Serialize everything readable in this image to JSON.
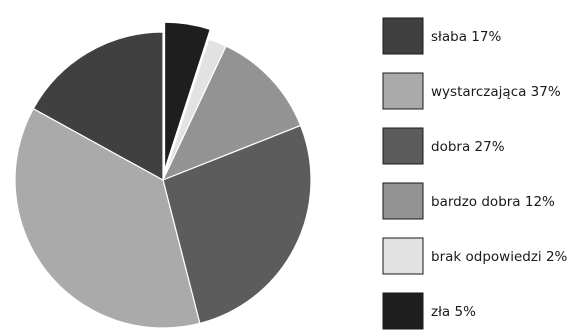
{
  "chart_data": {
    "type": "pie",
    "title": "",
    "slices": [
      {
        "label": "słaba 17%",
        "category": "słaba",
        "value": 17,
        "color": "#404040"
      },
      {
        "label": "wystarczająca 37%",
        "category": "wystarczająca",
        "value": 37,
        "color": "#aaaaaa"
      },
      {
        "label": "dobra 27%",
        "category": "dobra",
        "value": 27,
        "color": "#5c5c5c"
      },
      {
        "label": "bardzo dobra 12%",
        "category": "bardzo dobra",
        "value": 12,
        "color": "#939393"
      },
      {
        "label": "brak odpowiedzi 2%",
        "category": "brak odpowiedzi",
        "value": 2,
        "color": "#e2e2e2"
      },
      {
        "label": "zła 5%",
        "category": "zła",
        "value": 5,
        "color": "#1e1e1e",
        "exploded": true
      }
    ],
    "legend_position": "right"
  }
}
